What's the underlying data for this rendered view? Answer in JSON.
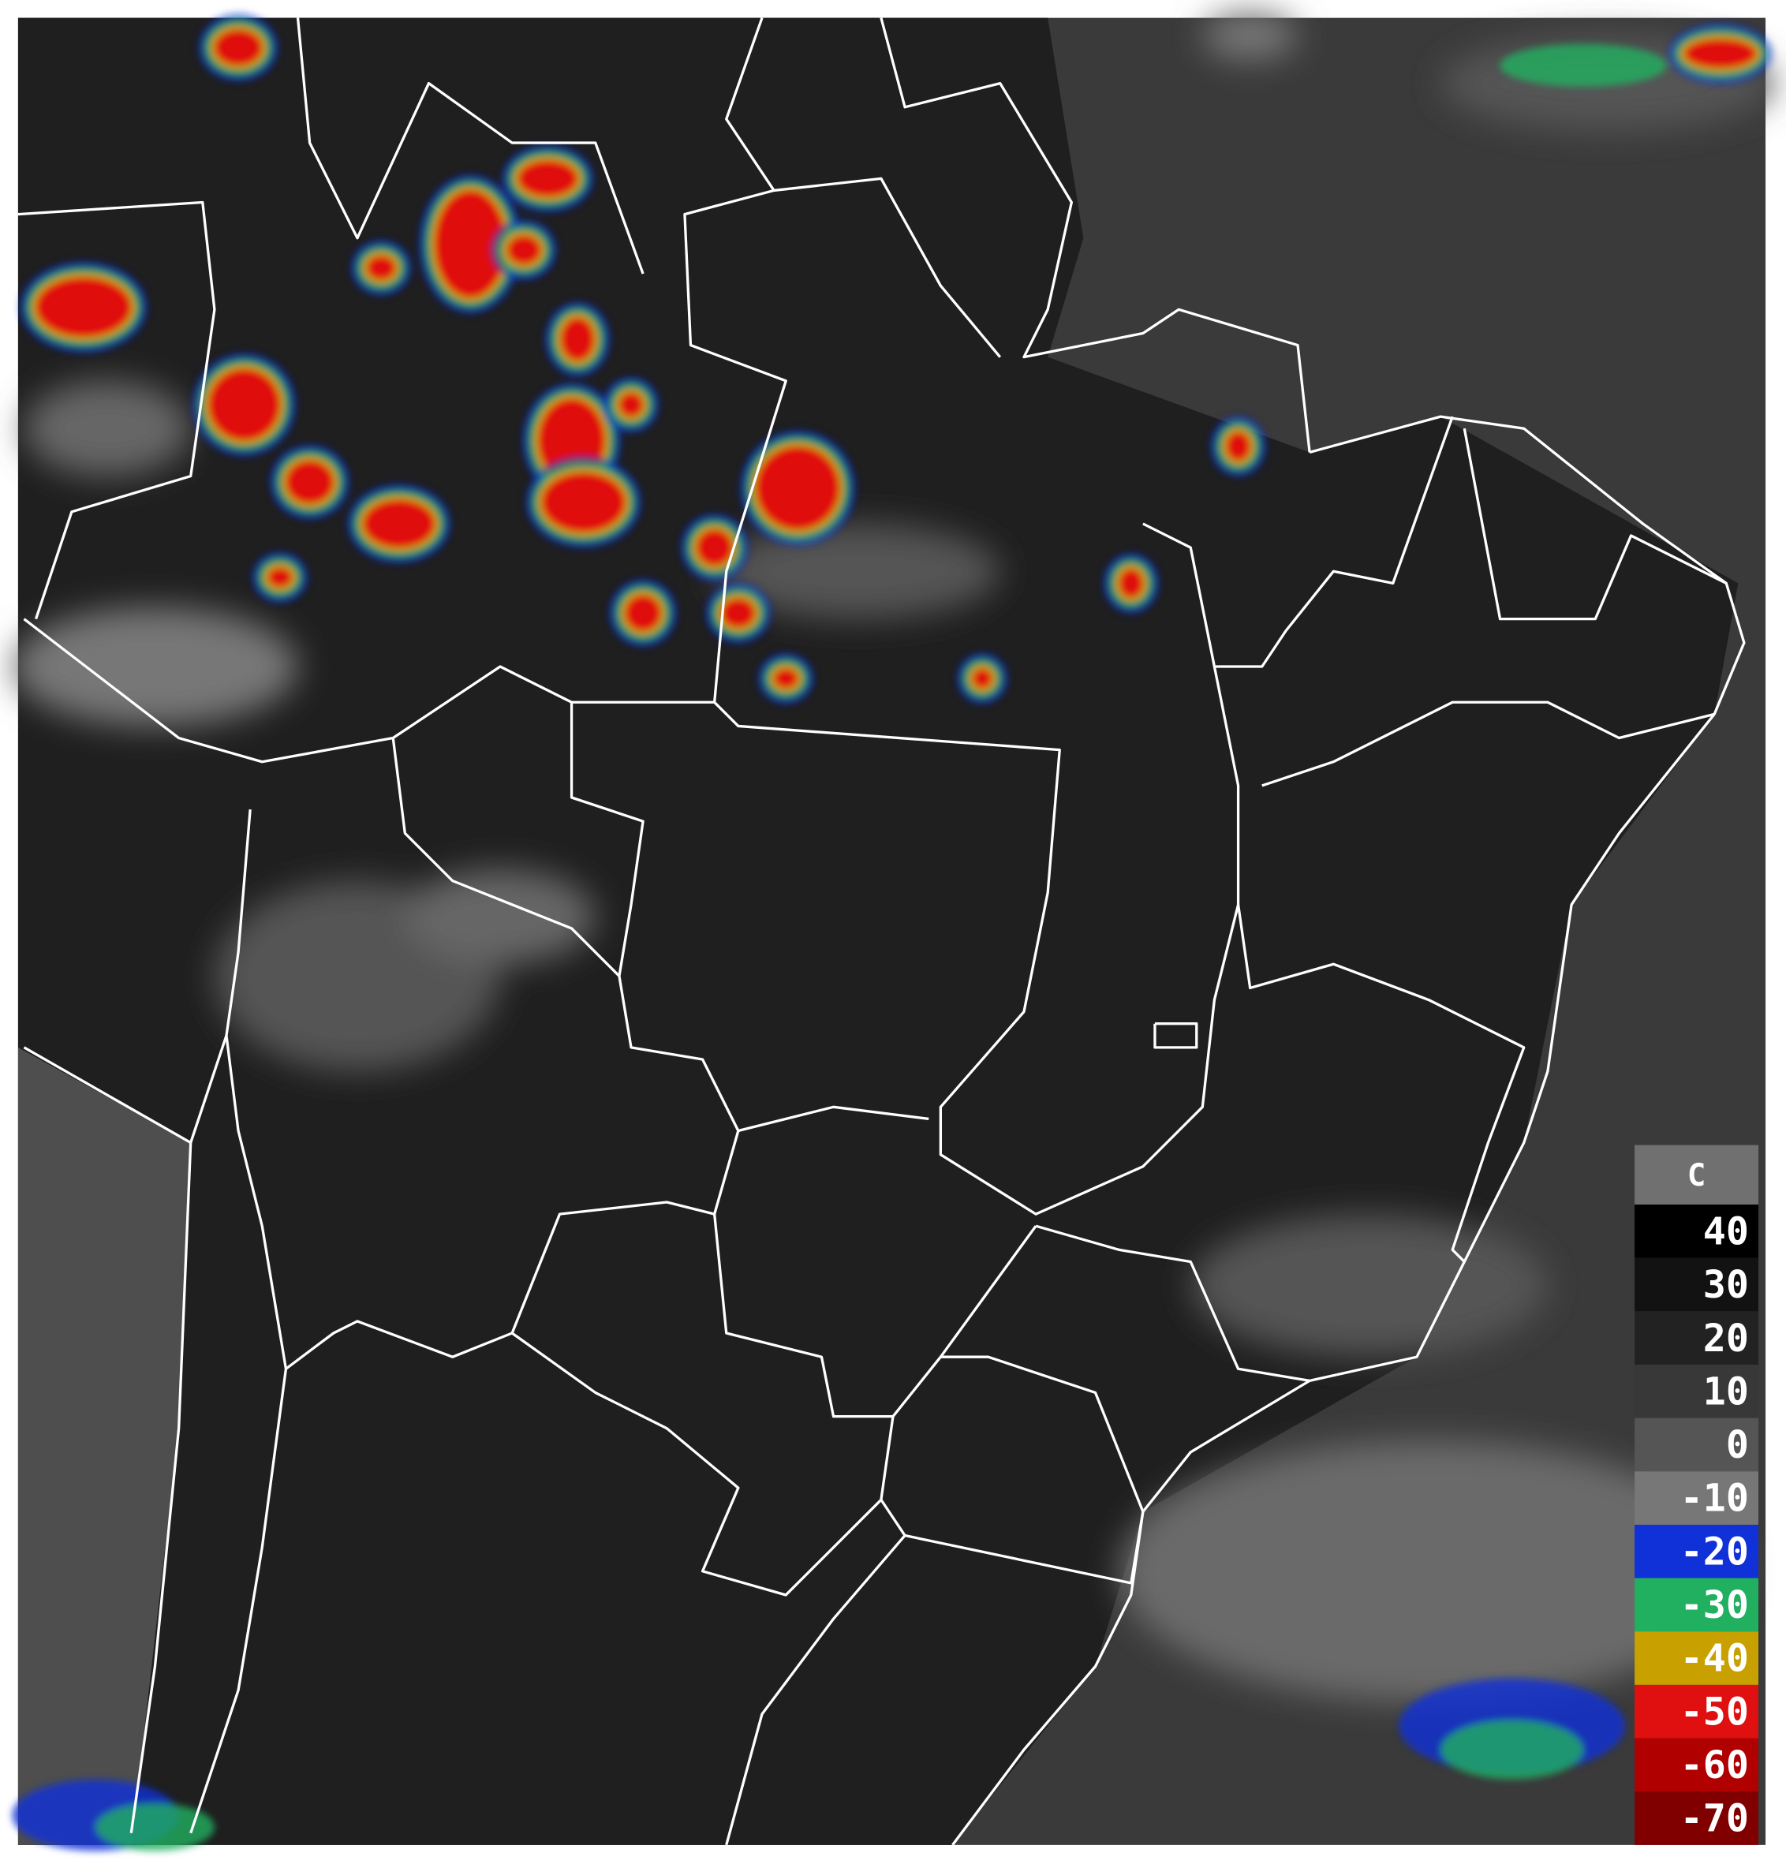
{
  "legend": {
    "unit": "C",
    "entries": [
      {
        "value": 40,
        "color": "#000000"
      },
      {
        "value": 30,
        "color": "#121212"
      },
      {
        "value": 20,
        "color": "#222222"
      },
      {
        "value": 10,
        "color": "#383838"
      },
      {
        "value": 0,
        "color": "#555555"
      },
      {
        "value": -10,
        "color": "#777777"
      },
      {
        "value": -20,
        "color": "#1030d8"
      },
      {
        "value": -30,
        "color": "#20b060"
      },
      {
        "value": -40,
        "color": "#c8a000"
      },
      {
        "value": -50,
        "color": "#e01010"
      },
      {
        "value": -60,
        "color": "#b00000"
      },
      {
        "value": -70,
        "color": "#800000"
      }
    ]
  }
}
